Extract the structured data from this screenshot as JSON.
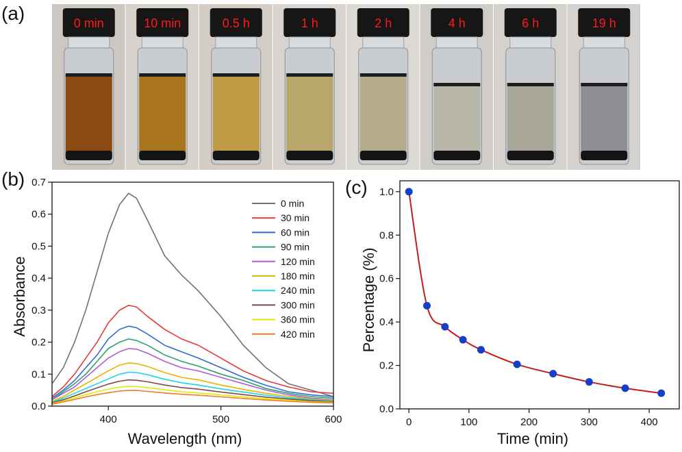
{
  "panels": {
    "a": "(a)",
    "b": "(b)",
    "c": "(c)"
  },
  "photos": {
    "labels": [
      "0 min",
      "10 min",
      "0.5 h",
      "1 h",
      "2 h",
      "4 h",
      "6 h",
      "19 h"
    ],
    "liquid_colors": [
      "#8a4a10",
      "#a8741c",
      "#bf9a44",
      "#b9a66a",
      "#b5ad8a",
      "#b8b6a8",
      "#a9a79a",
      "#8e8f95"
    ],
    "label_color": "#ff1a1a"
  },
  "chart_data": [
    {
      "type": "line",
      "xlabel": "Wavelength (nm)",
      "ylabel": "Absorbance",
      "xlim": [
        350,
        600
      ],
      "ylim": [
        0,
        0.7
      ],
      "xticks": [
        400,
        500,
        600
      ],
      "yticks": [
        0.0,
        0.1,
        0.2,
        0.3,
        0.4,
        0.5,
        0.6,
        0.7
      ],
      "legend_position": "top-right",
      "x": [
        350,
        360,
        370,
        380,
        390,
        400,
        410,
        418,
        425,
        435,
        450,
        465,
        480,
        500,
        520,
        540,
        560,
        580,
        600
      ],
      "series": [
        {
          "name": "0 min",
          "color": "#707070",
          "values": [
            0.07,
            0.12,
            0.2,
            0.3,
            0.42,
            0.54,
            0.63,
            0.665,
            0.65,
            0.58,
            0.47,
            0.41,
            0.36,
            0.28,
            0.19,
            0.12,
            0.07,
            0.05,
            0.03
          ]
        },
        {
          "name": "30 min",
          "color": "#e53a3a",
          "values": [
            0.03,
            0.06,
            0.1,
            0.15,
            0.2,
            0.26,
            0.3,
            0.315,
            0.31,
            0.28,
            0.24,
            0.21,
            0.19,
            0.15,
            0.11,
            0.08,
            0.06,
            0.045,
            0.04
          ]
        },
        {
          "name": "60 min",
          "color": "#2f6bcf",
          "values": [
            0.025,
            0.05,
            0.08,
            0.12,
            0.16,
            0.21,
            0.24,
            0.25,
            0.245,
            0.225,
            0.19,
            0.17,
            0.15,
            0.12,
            0.09,
            0.065,
            0.045,
            0.035,
            0.03
          ]
        },
        {
          "name": "90 min",
          "color": "#27a36a",
          "values": [
            0.02,
            0.045,
            0.07,
            0.1,
            0.14,
            0.18,
            0.2,
            0.21,
            0.205,
            0.19,
            0.16,
            0.14,
            0.125,
            0.1,
            0.08,
            0.055,
            0.04,
            0.03,
            0.025
          ]
        },
        {
          "name": "120 min",
          "color": "#b05ad8",
          "values": [
            0.02,
            0.04,
            0.06,
            0.09,
            0.12,
            0.15,
            0.17,
            0.18,
            0.178,
            0.165,
            0.14,
            0.12,
            0.11,
            0.09,
            0.07,
            0.05,
            0.035,
            0.025,
            0.02
          ]
        },
        {
          "name": "180 min",
          "color": "#e8b400",
          "values": [
            0.015,
            0.03,
            0.05,
            0.07,
            0.09,
            0.11,
            0.128,
            0.135,
            0.133,
            0.124,
            0.105,
            0.09,
            0.082,
            0.066,
            0.052,
            0.04,
            0.03,
            0.022,
            0.018
          ]
        },
        {
          "name": "240 min",
          "color": "#19d6e8",
          "values": [
            0.012,
            0.025,
            0.04,
            0.055,
            0.07,
            0.085,
            0.1,
            0.106,
            0.105,
            0.098,
            0.084,
            0.073,
            0.066,
            0.054,
            0.044,
            0.034,
            0.026,
            0.02,
            0.016
          ]
        },
        {
          "name": "300 min",
          "color": "#7a4a4a",
          "values": [
            0.01,
            0.02,
            0.032,
            0.045,
            0.057,
            0.069,
            0.078,
            0.082,
            0.081,
            0.076,
            0.066,
            0.058,
            0.053,
            0.044,
            0.036,
            0.028,
            0.022,
            0.017,
            0.014
          ]
        },
        {
          "name": "360 min",
          "color": "#e6e600",
          "values": [
            0.008,
            0.016,
            0.026,
            0.036,
            0.045,
            0.053,
            0.059,
            0.062,
            0.061,
            0.058,
            0.051,
            0.045,
            0.041,
            0.035,
            0.029,
            0.023,
            0.018,
            0.014,
            0.012
          ]
        },
        {
          "name": "420 min",
          "color": "#ee7a2a",
          "values": [
            0.006,
            0.013,
            0.021,
            0.029,
            0.036,
            0.042,
            0.047,
            0.049,
            0.049,
            0.046,
            0.041,
            0.037,
            0.034,
            0.029,
            0.024,
            0.019,
            0.015,
            0.012,
            0.01
          ]
        }
      ]
    },
    {
      "type": "scatter",
      "xlabel": "Time (min)",
      "ylabel": "Percentage (%)",
      "xlim": [
        -15,
        450
      ],
      "ylim": [
        0,
        1.05
      ],
      "xticks": [
        0,
        100,
        200,
        300,
        400
      ],
      "yticks": [
        0.0,
        0.2,
        0.4,
        0.6,
        0.8,
        1.0
      ],
      "x": [
        0,
        30,
        60,
        90,
        120,
        180,
        240,
        300,
        360,
        420
      ],
      "y": [
        1.0,
        0.475,
        0.378,
        0.318,
        0.272,
        0.205,
        0.162,
        0.124,
        0.095,
        0.072
      ],
      "point_color": "#1240c8",
      "line_color": "#c41a1a"
    }
  ]
}
